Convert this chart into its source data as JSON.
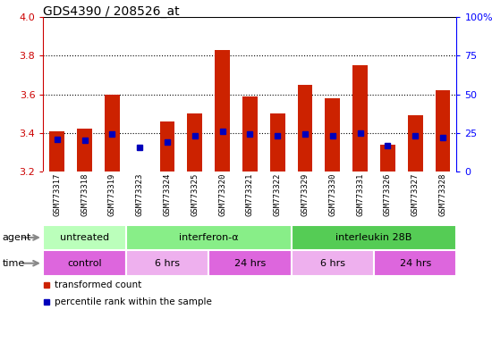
{
  "title": "GDS4390 / 208526_at",
  "samples": [
    "GSM773317",
    "GSM773318",
    "GSM773319",
    "GSM773323",
    "GSM773324",
    "GSM773325",
    "GSM773320",
    "GSM773321",
    "GSM773322",
    "GSM773329",
    "GSM773330",
    "GSM773331",
    "GSM773326",
    "GSM773327",
    "GSM773328"
  ],
  "transformed_count": [
    3.41,
    3.42,
    3.6,
    3.2,
    3.46,
    3.5,
    3.83,
    3.59,
    3.5,
    3.65,
    3.58,
    3.75,
    3.34,
    3.49,
    3.62
  ],
  "percentile_rank": [
    3.365,
    3.36,
    3.395,
    3.325,
    3.355,
    3.385,
    3.41,
    3.395,
    3.385,
    3.395,
    3.385,
    3.4,
    3.335,
    3.385,
    3.375
  ],
  "y_min": 3.2,
  "y_max": 4.0,
  "y_ticks": [
    3.2,
    3.4,
    3.6,
    3.8,
    4.0
  ],
  "y2_ticks_labels": [
    "0",
    "25",
    "50",
    "75",
    "100%"
  ],
  "y2_tick_positions": [
    3.2,
    3.4,
    3.6,
    3.8,
    4.0
  ],
  "bar_color": "#cc2200",
  "dot_color": "#0000bb",
  "grid_color": "black",
  "bg_color": "#cccccc",
  "agent_groups": [
    {
      "label": "untreated",
      "start": 0,
      "end": 3,
      "color": "#bbffbb"
    },
    {
      "label": "interferon-α",
      "start": 3,
      "end": 9,
      "color": "#88ee88"
    },
    {
      "label": "interleukin 28B",
      "start": 9,
      "end": 15,
      "color": "#55cc55"
    }
  ],
  "time_groups": [
    {
      "label": "control",
      "start": 0,
      "end": 3,
      "color": "#dd66dd"
    },
    {
      "label": "6 hrs",
      "start": 3,
      "end": 6,
      "color": "#eeb0ee"
    },
    {
      "label": "24 hrs",
      "start": 6,
      "end": 9,
      "color": "#dd66dd"
    },
    {
      "label": "6 hrs",
      "start": 9,
      "end": 12,
      "color": "#eeb0ee"
    },
    {
      "label": "24 hrs",
      "start": 12,
      "end": 15,
      "color": "#dd66dd"
    }
  ],
  "legend_items": [
    {
      "color": "#cc2200",
      "label": "transformed count"
    },
    {
      "color": "#0000bb",
      "label": "percentile rank within the sample"
    }
  ]
}
